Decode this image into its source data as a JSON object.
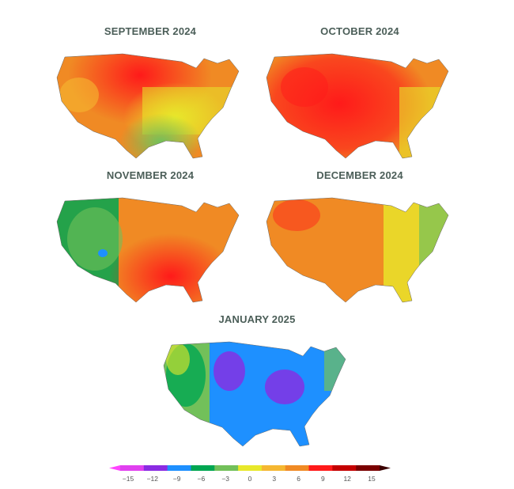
{
  "panels": [
    {
      "title": "SEPTEMBER 2024",
      "dominant": "orange-red",
      "hot_region": "north-central"
    },
    {
      "title": "OCTOBER 2024",
      "dominant": "red",
      "hot_region": "central"
    },
    {
      "title": "NOVEMBER 2024",
      "dominant": "green-west-red-east",
      "hot_region": "southeast"
    },
    {
      "title": "DECEMBER 2024",
      "dominant": "orange",
      "hot_region": "west"
    },
    {
      "title": "JANUARY 2025",
      "dominant": "blue",
      "hot_region": "none"
    }
  ],
  "colorbar": {
    "ticks": [
      "−15",
      "−12",
      "−9",
      "−6",
      "−3",
      "0",
      "3",
      "6",
      "9",
      "12",
      "15"
    ],
    "colors": [
      "#e040ef",
      "#8a2be2",
      "#1e90ff",
      "#00a651",
      "#72c05a",
      "#e8e82a",
      "#f5b731",
      "#f08a24",
      "#ff1a1a",
      "#c40000",
      "#7a0000"
    ]
  }
}
